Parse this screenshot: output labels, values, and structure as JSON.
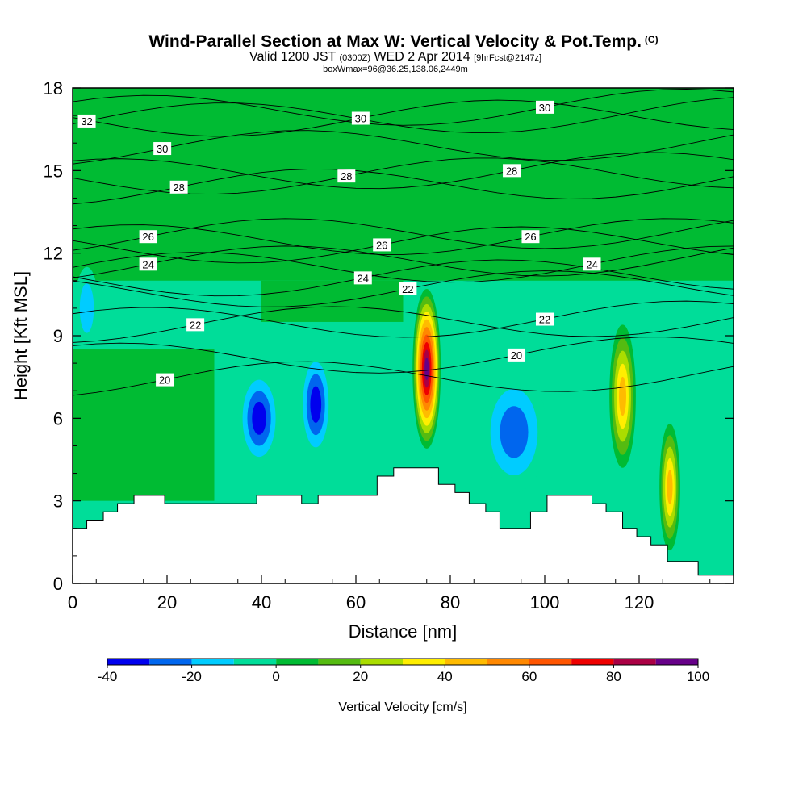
{
  "header": {
    "title_main": "Wind-Parallel Section at Max W: Vertical Velocity & Pot.Temp.",
    "title_mark": "(C)",
    "valid_a": "Valid 1200 JST",
    "valid_b": "(0300Z)",
    "valid_c": "WED 2 Apr 2014",
    "valid_d": "[9hrFcst@2147z]",
    "box_info": "boxWmax=96@36.25,138.06,2449m"
  },
  "chart_data": {
    "type": "heatmap",
    "xlabel": "Distance [nm]",
    "ylabel": "Height [Kft MSL]",
    "xlim": [
      0,
      140
    ],
    "ylim": [
      0,
      18
    ],
    "xticks": [
      0,
      20,
      40,
      60,
      80,
      100,
      120
    ],
    "yticks": [
      0,
      3,
      6,
      9,
      12,
      15,
      18
    ],
    "colorbar": {
      "label": "Vertical Velocity [cm/s]",
      "tick_labels": [
        "-40",
        "-20",
        "0",
        "20",
        "40",
        "60",
        "80",
        "100"
      ],
      "tick_values": [
        -40,
        -20,
        0,
        20,
        40,
        60,
        80,
        100
      ],
      "bins": [
        {
          "min": -40,
          "max": -30,
          "color": "#0000ee"
        },
        {
          "min": -30,
          "max": -20,
          "color": "#0066ee"
        },
        {
          "min": -20,
          "max": -10,
          "color": "#00ccff"
        },
        {
          "min": -10,
          "max": 0,
          "color": "#00dd99"
        },
        {
          "min": 0,
          "max": 10,
          "color": "#00bb33"
        },
        {
          "min": 10,
          "max": 20,
          "color": "#55bb11"
        },
        {
          "min": 20,
          "max": 30,
          "color": "#aadd00"
        },
        {
          "min": 30,
          "max": 40,
          "color": "#ffee00"
        },
        {
          "min": 40,
          "max": 50,
          "color": "#ffbb00"
        },
        {
          "min": 50,
          "max": 60,
          "color": "#ff8800"
        },
        {
          "min": 60,
          "max": 70,
          "color": "#ff5500"
        },
        {
          "min": 70,
          "max": 80,
          "color": "#ee0000"
        },
        {
          "min": 80,
          "max": 90,
          "color": "#aa0044"
        },
        {
          "min": 90,
          "max": 100,
          "color": "#660088"
        }
      ]
    },
    "terrain": [
      [
        0,
        2.0
      ],
      [
        3,
        2.0
      ],
      [
        3,
        2.3
      ],
      [
        6.5,
        2.3
      ],
      [
        6.5,
        2.6
      ],
      [
        9.5,
        2.6
      ],
      [
        9.5,
        2.9
      ],
      [
        13,
        2.9
      ],
      [
        13,
        3.2
      ],
      [
        19.5,
        3.2
      ],
      [
        19.5,
        2.9
      ],
      [
        39,
        2.9
      ],
      [
        39,
        3.2
      ],
      [
        48.5,
        3.2
      ],
      [
        48.5,
        2.9
      ],
      [
        52,
        2.9
      ],
      [
        52,
        3.2
      ],
      [
        64.5,
        3.2
      ],
      [
        64.5,
        3.9
      ],
      [
        68,
        3.9
      ],
      [
        68,
        4.2
      ],
      [
        77.5,
        4.2
      ],
      [
        77.5,
        3.6
      ],
      [
        81,
        3.6
      ],
      [
        81,
        3.3
      ],
      [
        84,
        3.3
      ],
      [
        84,
        2.9
      ],
      [
        87.5,
        2.9
      ],
      [
        87.5,
        2.6
      ],
      [
        90.5,
        2.6
      ],
      [
        90.5,
        2.0
      ],
      [
        97,
        2.0
      ],
      [
        97,
        2.6
      ],
      [
        100.5,
        2.6
      ],
      [
        100.5,
        3.2
      ],
      [
        110,
        3.2
      ],
      [
        110,
        2.9
      ],
      [
        113,
        2.9
      ],
      [
        113,
        2.6
      ],
      [
        116.5,
        2.6
      ],
      [
        116.5,
        2.0
      ],
      [
        119.5,
        2.0
      ],
      [
        119.5,
        1.7
      ],
      [
        122.5,
        1.7
      ],
      [
        122.5,
        1.4
      ],
      [
        126,
        1.4
      ],
      [
        126,
        0.8
      ],
      [
        132.5,
        0.8
      ],
      [
        132.5,
        0.3
      ],
      [
        140,
        0.3
      ]
    ],
    "w_features": [
      {
        "x": 75,
        "y": 7.8,
        "rx": 3.0,
        "ry": 2.9,
        "w": 96
      },
      {
        "x": 116.5,
        "y": 6.8,
        "rx": 2.8,
        "ry": 2.6,
        "w": 48
      },
      {
        "x": 126.5,
        "y": 3.5,
        "rx": 2.2,
        "ry": 2.3,
        "w": 52
      },
      {
        "x": 39.5,
        "y": 6.0,
        "rx": 4.5,
        "ry": 1.8,
        "w": -40
      },
      {
        "x": 51.5,
        "y": 6.5,
        "rx": 3.5,
        "ry": 2.0,
        "w": -38
      },
      {
        "x": 93.5,
        "y": 5.5,
        "rx": 7.0,
        "ry": 2.2,
        "w": -28
      },
      {
        "x": 3,
        "y": 10.0,
        "rx": 2.5,
        "ry": 1.5,
        "w": -24
      },
      {
        "x": 60,
        "y": 16.5,
        "rx": 7.0,
        "ry": 1.2,
        "w": 8
      }
    ],
    "isentrope_labels": [
      {
        "text": "32",
        "x": 3,
        "y": 16.8
      },
      {
        "text": "30",
        "x": 19,
        "y": 15.8
      },
      {
        "text": "30",
        "x": 61,
        "y": 16.9
      },
      {
        "text": "30",
        "x": 100,
        "y": 17.3
      },
      {
        "text": "28",
        "x": 22.5,
        "y": 14.4
      },
      {
        "text": "28",
        "x": 58,
        "y": 14.8
      },
      {
        "text": "28",
        "x": 93,
        "y": 15.0
      },
      {
        "text": "26",
        "x": 16,
        "y": 12.6
      },
      {
        "text": "26",
        "x": 65.5,
        "y": 12.3
      },
      {
        "text": "26",
        "x": 97,
        "y": 12.6
      },
      {
        "text": "24",
        "x": 16,
        "y": 11.6
      },
      {
        "text": "24",
        "x": 61.5,
        "y": 11.1
      },
      {
        "text": "24",
        "x": 110,
        "y": 11.6
      },
      {
        "text": "22",
        "x": 26,
        "y": 9.4
      },
      {
        "text": "22",
        "x": 71,
        "y": 10.7
      },
      {
        "text": "22",
        "x": 100,
        "y": 9.6
      },
      {
        "text": "20",
        "x": 19.5,
        "y": 7.4
      },
      {
        "text": "20",
        "x": 94,
        "y": 8.3
      }
    ]
  }
}
